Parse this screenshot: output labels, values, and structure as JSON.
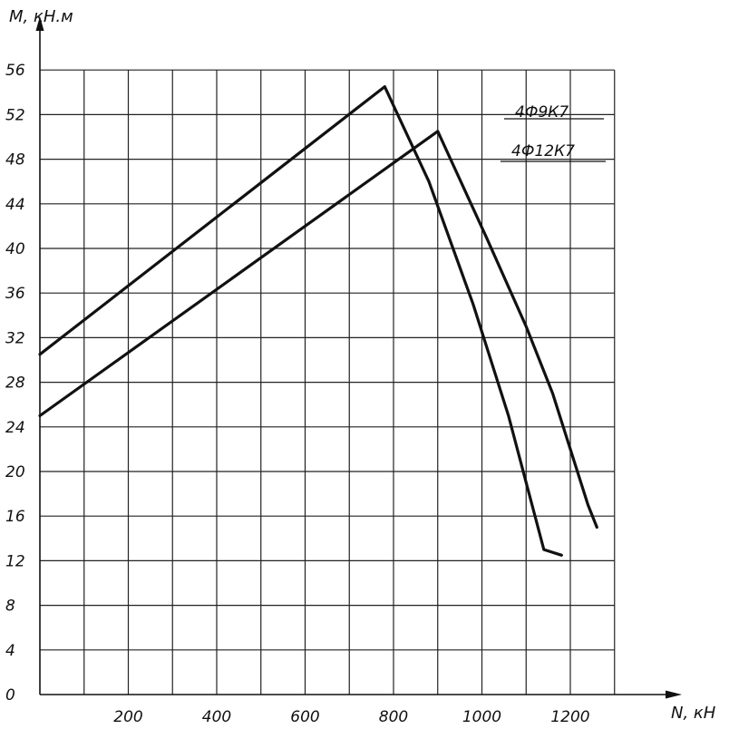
{
  "chart_data": {
    "type": "line",
    "ylabel": "M, кН.м",
    "xlabel": "N, кН",
    "xlim": [
      0,
      1300
    ],
    "ylim": [
      0,
      56
    ],
    "grid": true,
    "x_ticks": [
      "200",
      "400",
      "600",
      "800",
      "1000",
      "1200"
    ],
    "y_ticks": [
      "0",
      "4",
      "8",
      "12",
      "16",
      "20",
      "24",
      "28",
      "32",
      "36",
      "40",
      "44",
      "48",
      "52",
      "56"
    ],
    "legend_position": "top-right",
    "series": [
      {
        "name": "4Ф9К7",
        "x": [
          0,
          780,
          880,
          980,
          1060,
          1100,
          1140,
          1180
        ],
        "y": [
          30.5,
          54.5,
          46,
          35,
          25,
          19,
          13,
          12.5
        ]
      },
      {
        "name": "4Ф12К7",
        "x": [
          0,
          900,
          1010,
          1100,
          1160,
          1200,
          1240,
          1260
        ],
        "y": [
          25,
          50.5,
          41,
          33,
          27,
          22,
          17,
          15
        ]
      }
    ]
  }
}
